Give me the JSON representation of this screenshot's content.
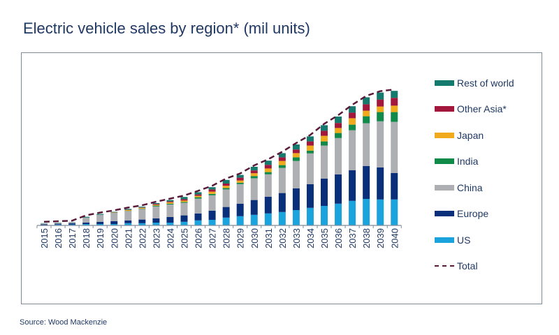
{
  "chart_data": {
    "type": "bar",
    "stacked": true,
    "title": "Electric vehicle sales by region* (mil units)",
    "xlabel": "",
    "ylabel": "",
    "ylim": [
      0,
      50
    ],
    "grid": false,
    "legend_position": "right",
    "categories": [
      "2015",
      "2016",
      "2017",
      "2018",
      "2019",
      "2020",
      "2021",
      "2022",
      "2023",
      "2024",
      "2025",
      "2026",
      "2027",
      "2028",
      "2029",
      "2030",
      "2031",
      "2032",
      "2033",
      "2034",
      "2035",
      "2036",
      "2037",
      "2038",
      "2039",
      "2040"
    ],
    "series": [
      {
        "name": "US",
        "color": "#1aa3dc",
        "values": [
          0.1,
          0.3,
          0.3,
          0.5,
          0.5,
          0.5,
          0.8,
          0.8,
          1,
          1,
          1.3,
          1.8,
          2,
          2.8,
          3.3,
          3.8,
          4.3,
          4.8,
          5.5,
          6.3,
          7,
          7.8,
          8.8,
          9.5,
          9.3,
          9.3
        ]
      },
      {
        "name": "Europe",
        "color": "#0a2f7a",
        "values": [
          0.3,
          0.3,
          0.5,
          0.5,
          0.8,
          1,
          1,
          1.3,
          1.5,
          2,
          2.3,
          2.5,
          3.3,
          3.8,
          4.5,
          5.3,
          6,
          6.8,
          7.8,
          8.5,
          9.8,
          10.5,
          11,
          11.8,
          11.5,
          9.5
        ]
      },
      {
        "name": "China",
        "color": "#aeafb3",
        "values": [
          0.3,
          0.3,
          0.3,
          1.8,
          2.5,
          3,
          3.3,
          3.8,
          4.3,
          4.5,
          4.5,
          5.3,
          5.5,
          6.3,
          7,
          7.8,
          8,
          9,
          9.8,
          11,
          11.8,
          13,
          14.3,
          15.3,
          16.5,
          18.3
        ]
      },
      {
        "name": "India",
        "color": "#108a48",
        "values": [
          0,
          0,
          0,
          0,
          0,
          0.1,
          0.1,
          0.1,
          0.3,
          0.3,
          0.3,
          0.5,
          0.5,
          0.5,
          0.5,
          0.8,
          0.8,
          1,
          1.3,
          1,
          1.5,
          1.8,
          2,
          2.5,
          3.3,
          3.5
        ]
      },
      {
        "name": "Japan",
        "color": "#f0aa1c",
        "values": [
          0,
          0,
          0,
          0,
          0,
          0.1,
          0.3,
          0.3,
          0.3,
          0.5,
          0.5,
          0.5,
          0.8,
          0.8,
          0.8,
          1,
          1.3,
          1.5,
          1.5,
          1.8,
          2,
          1.8,
          2.3,
          2,
          2,
          2.3
        ]
      },
      {
        "name": "Other Asia*",
        "color": "#a3173c",
        "values": [
          0,
          0,
          0,
          0,
          0,
          0.1,
          0.1,
          0.1,
          0.3,
          0.3,
          0.5,
          0.5,
          0.8,
          0.8,
          1,
          1,
          1.3,
          1.3,
          1.3,
          1.5,
          1.8,
          1.8,
          2,
          2.3,
          2.5,
          2.8
        ]
      },
      {
        "name": "Rest of world",
        "color": "#147a6e",
        "values": [
          0.1,
          0.1,
          0.1,
          0.3,
          0.3,
          0.1,
          0.3,
          0.3,
          0.3,
          0.5,
          0.8,
          0.8,
          0.8,
          1.3,
          1,
          1.3,
          1.5,
          1.5,
          1.8,
          1.8,
          2,
          2.3,
          2.3,
          2.5,
          2.5,
          2.5
        ]
      }
    ],
    "total_line": {
      "name": "Total",
      "color": "#5a1a3a",
      "style": "dashed"
    },
    "legend_order": [
      "Rest of world",
      "Other Asia*",
      "Japan",
      "India",
      "China",
      "Europe",
      "US",
      "Total"
    ]
  },
  "source": "Source: Wood Mackenzie"
}
